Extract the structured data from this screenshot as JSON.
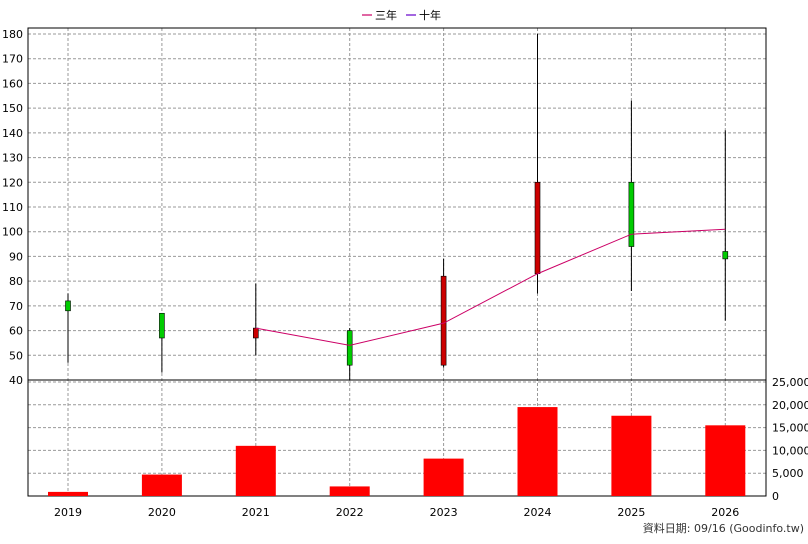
{
  "legend": {
    "items": [
      {
        "label": "三年",
        "color": "#cc0066"
      },
      {
        "label": "十年",
        "color": "#6600cc"
      }
    ],
    "placement": "top-center"
  },
  "footer": {
    "data_date": "資料日期: 09/16  (Goodinfo.tw)"
  },
  "colors": {
    "up_candle": "#cc0000",
    "down_candle": "#00cc00",
    "volume_bar": "#ff0000",
    "ma3_line": "#cc0066",
    "grid": "#999999",
    "frame": "#000000"
  },
  "chart_data": [
    {
      "type": "candlestick",
      "categories": [
        "2019",
        "2020",
        "2021",
        "2022",
        "2023",
        "2024",
        "2025",
        "2026"
      ],
      "ohlc": [
        {
          "year": "2019",
          "open": 72,
          "high": 75,
          "low": 47,
          "close": 68
        },
        {
          "year": "2020",
          "open": 67,
          "high": 67,
          "low": 43,
          "close": 57
        },
        {
          "year": "2021",
          "open": 57,
          "high": 79,
          "low": 50,
          "close": 61
        },
        {
          "year": "2022",
          "open": 60,
          "high": 61,
          "low": 40,
          "close": 46
        },
        {
          "year": "2023",
          "open": 46,
          "high": 89,
          "low": 45,
          "close": 82
        },
        {
          "year": "2024",
          "open": 83,
          "high": 180,
          "low": 75,
          "close": 120
        },
        {
          "year": "2025",
          "open": 120,
          "high": 153,
          "low": 76,
          "close": 94
        },
        {
          "year": "2026",
          "open": 92,
          "high": 141,
          "low": 64,
          "close": 89
        }
      ],
      "series": [
        {
          "name": "三年",
          "x": [
            "2021",
            "2022",
            "2023",
            "2024",
            "2025",
            "2026"
          ],
          "values": [
            61,
            54,
            63,
            83,
            99,
            101
          ]
        }
      ],
      "ylim": [
        40,
        180
      ],
      "yticks": [
        40,
        50,
        60,
        70,
        80,
        90,
        100,
        110,
        120,
        130,
        140,
        150,
        160,
        170,
        180
      ],
      "ytick_labels": [
        "40",
        "50",
        "60",
        "70",
        "80",
        "90",
        "100",
        "110",
        "120",
        "130",
        "140",
        "150",
        "160",
        "170",
        "180"
      ],
      "grid": true
    },
    {
      "type": "bar",
      "categories": [
        "2019",
        "2020",
        "2021",
        "2022",
        "2023",
        "2024",
        "2025",
        "2026"
      ],
      "values": [
        900,
        4700,
        11000,
        2100,
        8200,
        19500,
        17600,
        15500
      ],
      "ylim": [
        0,
        25000
      ],
      "yticks": [
        0,
        5000,
        10000,
        15000,
        20000,
        25000
      ],
      "ytick_labels": [
        "0",
        "5,000",
        "10,000",
        "15,000",
        "20,000",
        "25,000"
      ],
      "grid": true
    }
  ]
}
